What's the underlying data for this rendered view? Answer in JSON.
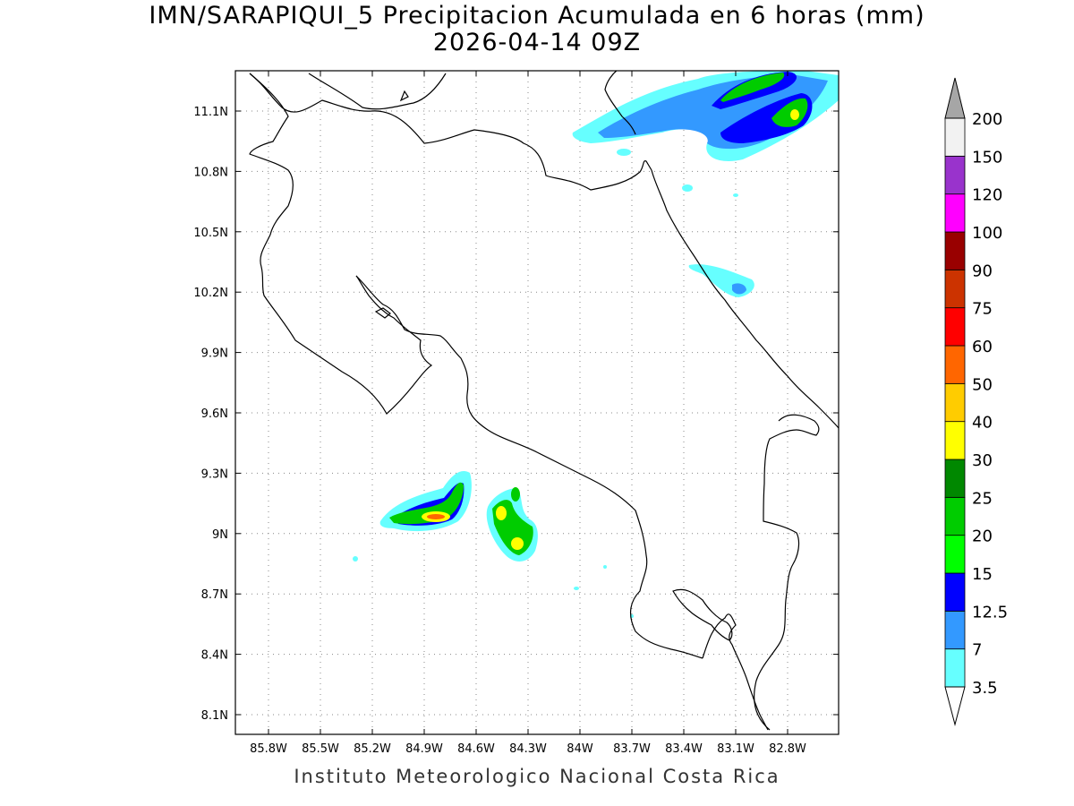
{
  "title_line1": "IMN/SARAPIQUI_5 Precipitacion Acumulada en 6 horas (mm)",
  "title_line2": "2026-04-14 09Z",
  "footer": "Instituto Meteorologico Nacional Costa Rica",
  "map": {
    "lon_ticks": [
      "85.8W",
      "85.5W",
      "85.2W",
      "84.9W",
      "84.6W",
      "84.3W",
      "84W",
      "83.7W",
      "83.4W",
      "83.1W",
      "82.8W"
    ],
    "lat_ticks": [
      "11.1N",
      "10.8N",
      "10.5N",
      "10.2N",
      "9.9N",
      "9.6N",
      "9.3N",
      "9N",
      "8.7N",
      "8.4N",
      "8.1N"
    ],
    "gridlines": true
  },
  "legend": {
    "levels": [
      "3.5",
      "7",
      "12.5",
      "15",
      "20",
      "25",
      "30",
      "40",
      "50",
      "60",
      "75",
      "90",
      "100",
      "120",
      "150",
      "200"
    ],
    "colors": [
      "#66ffff",
      "#3399ff",
      "#0000ff",
      "#00ff00",
      "#00cc00",
      "#008800",
      "#ffff00",
      "#ffcc00",
      "#ff6600",
      "#ff0000",
      "#cc3300",
      "#990000",
      "#ff00ff",
      "#9933cc",
      "#f2f2f2"
    ],
    "over_color": "#a6a6a6",
    "under_color": "#ffffff"
  }
}
